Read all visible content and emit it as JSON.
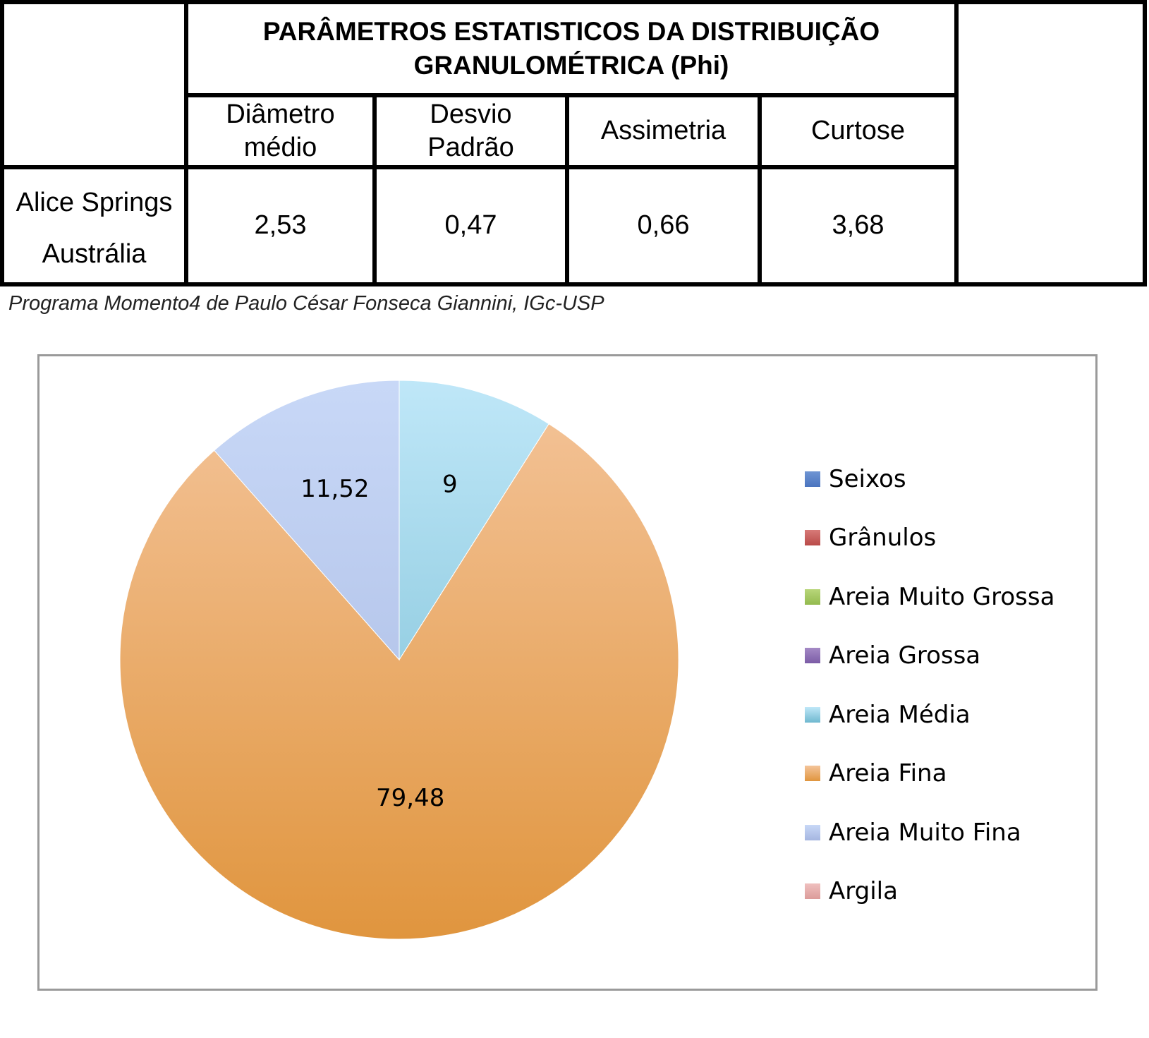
{
  "table": {
    "title": "PARÂMETROS ESTATISTICOS DA DISTRIBUIÇÃO GRANULOMÉTRICA (Phi)",
    "title_line1": "PARÂMETROS ESTATISTICOS DA DISTRIBUIÇÃO",
    "title_line2": "GRANULOMÉTRICA (Phi)",
    "columns": [
      {
        "line1": "Diâmetro",
        "line2": "médio"
      },
      {
        "line1": "Desvio",
        "line2": "Padrão"
      },
      {
        "line1": "Assimetria",
        "line2": ""
      },
      {
        "line1": "Curtose",
        "line2": ""
      }
    ],
    "row_label_line1": "Alice Springs",
    "row_label_line2": "Austrália",
    "values": [
      "2,53",
      "0,47",
      "0,66",
      "3,68"
    ]
  },
  "caption": "Programa Momento4 de Paulo César Fonseca Giannini, IGc-USP",
  "chart_data": {
    "type": "pie",
    "title": "",
    "start_angle_deg": 0,
    "direction": "clockwise",
    "legend_position": "right",
    "slices": [
      {
        "name": "Seixos",
        "value": 0,
        "label": "",
        "color_top": "#6f95d3",
        "color_bottom": "#4a74bf"
      },
      {
        "name": "Grânulos",
        "value": 0,
        "label": "",
        "color_top": "#d77a78",
        "color_bottom": "#b94a48"
      },
      {
        "name": "Areia Muito Grossa",
        "value": 0,
        "label": "",
        "color_top": "#b8d67a",
        "color_bottom": "#93ba4e"
      },
      {
        "name": "Areia Grossa",
        "value": 0,
        "label": "",
        "color_top": "#a58ac6",
        "color_bottom": "#7b5ca6"
      },
      {
        "name": "Areia Média",
        "value": 9,
        "label": "9",
        "color_top": "#bfe7f8",
        "color_bottom": "#6fb8cf"
      },
      {
        "name": "Areia Fina",
        "value": 79.48,
        "label": "79,48",
        "color_top": "#f4c49a",
        "color_bottom": "#e0953e"
      },
      {
        "name": "Areia Muito Fina",
        "value": 11.52,
        "label": "11,52",
        "color_top": "#c8d8f7",
        "color_bottom": "#a5b6e0"
      },
      {
        "name": "Argila",
        "value": 0,
        "label": "",
        "color_top": "#efc0bf",
        "color_bottom": "#dc9c9a"
      }
    ]
  }
}
